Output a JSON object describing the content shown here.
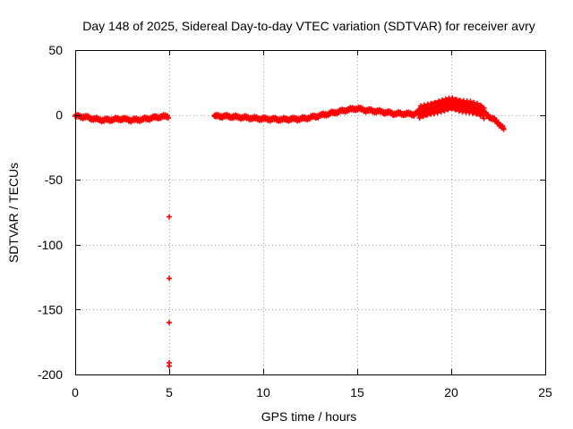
{
  "chart_data": {
    "type": "scatter",
    "title": "Day 148 of 2025, Sidereal Day-to-day VTEC variation (SDTVAR) for receiver avry",
    "xlabel": "GPS time / hours",
    "ylabel": "SDTVAR / TECUs",
    "xlim": [
      0,
      25
    ],
    "ylim": [
      -200,
      50
    ],
    "xticks": [
      0,
      5,
      10,
      15,
      20,
      25
    ],
    "yticks": [
      50,
      0,
      -50,
      -100,
      -150,
      -200
    ],
    "grid": true,
    "marker": "+",
    "series_color": "#ff0000",
    "series": [
      {
        "name": "SDTVAR",
        "segments": [
          {
            "t_start": 0.0,
            "t_end": 4.95,
            "knots": [
              [
                0.0,
                -1
              ],
              [
                0.5,
                -1.5
              ],
              [
                1.0,
                -3
              ],
              [
                1.5,
                -4
              ],
              [
                2.0,
                -3.5
              ],
              [
                2.5,
                -3
              ],
              [
                3.0,
                -4
              ],
              [
                3.5,
                -3.5
              ],
              [
                4.0,
                -2.5
              ],
              [
                4.5,
                -1.5
              ],
              [
                4.95,
                -1
              ]
            ]
          },
          {
            "t_start": 7.4,
            "t_end": 22.8,
            "knots": [
              [
                7.4,
                -1
              ],
              [
                8.0,
                -1
              ],
              [
                9.0,
                -2
              ],
              [
                10.0,
                -3
              ],
              [
                11.0,
                -3.5
              ],
              [
                12.0,
                -3
              ],
              [
                12.5,
                -2
              ],
              [
                13.0,
                -0.5
              ],
              [
                13.5,
                1
              ],
              [
                14.0,
                2.5
              ],
              [
                14.5,
                4
              ],
              [
                15.0,
                5
              ],
              [
                15.5,
                3.5
              ],
              [
                16.0,
                3
              ],
              [
                16.5,
                2
              ],
              [
                17.0,
                1
              ],
              [
                17.5,
                1
              ],
              [
                18.0,
                0.5
              ],
              [
                18.5,
                3
              ],
              [
                19.0,
                5
              ],
              [
                19.5,
                7
              ],
              [
                20.0,
                9
              ],
              [
                20.5,
                7
              ],
              [
                21.0,
                6
              ],
              [
                21.5,
                4
              ],
              [
                22.0,
                -1
              ],
              [
                22.5,
                -6
              ],
              [
                22.8,
                -11
              ]
            ]
          }
        ],
        "outliers": [
          [
            5.0,
            -78.5
          ],
          [
            5.0,
            -126
          ],
          [
            5.0,
            -160
          ],
          [
            5.0,
            -191
          ],
          [
            5.0,
            -193.5
          ]
        ]
      }
    ]
  }
}
